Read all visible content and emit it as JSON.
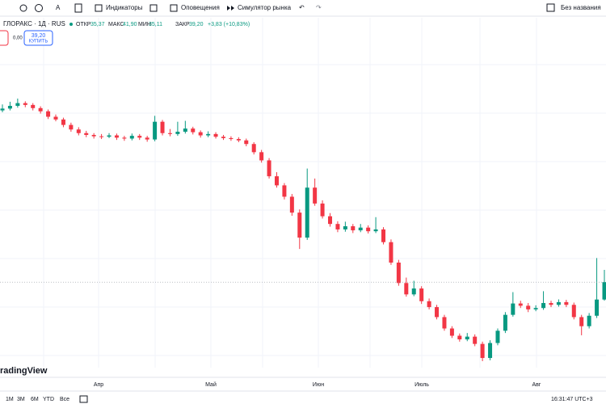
{
  "toolbar": {
    "indicators": "Индикаторы",
    "alerts": "Оповещения",
    "simulator": "Симулятор рынка",
    "layout_name": "Без названия"
  },
  "legend": {
    "symbol": "ГЛОРАКС · 1Д · RUS",
    "open_label": "ОТКР",
    "open": "35,37",
    "high_label": "МАКС",
    "high": "41,90",
    "low_label": "МИН",
    "low": "35,11",
    "close_label": "ЗАКР",
    "close": "39,20",
    "change": "+3,83 (+10,83%)"
  },
  "trade": {
    "spread": "0,00",
    "buy_price": "39,20",
    "buy_label": "КУПИТЬ"
  },
  "chart_data": {
    "type": "candlestick",
    "up_color": "#089981",
    "down_color": "#f23645",
    "x_labels": [
      "Апр",
      "Май",
      "Июн",
      "Июль",
      "Авг"
    ],
    "watermark": "radingView",
    "candles": [
      [
        77.0,
        78.3,
        76.6,
        77.4
      ],
      [
        77.4,
        78.9,
        77.0,
        78.0
      ],
      [
        78.0,
        79.6,
        77.6,
        78.6
      ],
      [
        78.6,
        79.0,
        77.7,
        78.2
      ],
      [
        78.2,
        78.6,
        77.0,
        77.5
      ],
      [
        77.5,
        77.9,
        76.3,
        76.8
      ],
      [
        76.8,
        77.2,
        75.1,
        75.6
      ],
      [
        75.6,
        76.1,
        74.6,
        75.0
      ],
      [
        75.0,
        75.4,
        73.3,
        73.8
      ],
      [
        73.8,
        74.3,
        72.3,
        72.8
      ],
      [
        72.8,
        73.3,
        71.5,
        72.0
      ],
      [
        72.0,
        72.5,
        71.1,
        71.6
      ],
      [
        71.6,
        72.0,
        70.8,
        71.3
      ],
      [
        71.3,
        71.8,
        70.7,
        71.2
      ],
      [
        71.2,
        72.0,
        70.9,
        71.5
      ],
      [
        71.5,
        71.9,
        70.5,
        71.0
      ],
      [
        71.0,
        71.4,
        70.3,
        70.8
      ],
      [
        70.8,
        71.9,
        70.4,
        71.4
      ],
      [
        71.4,
        71.8,
        70.5,
        71.0
      ],
      [
        71.0,
        71.4,
        70.1,
        70.6
      ],
      [
        70.6,
        75.8,
        70.2,
        74.5
      ],
      [
        74.5,
        74.9,
        71.5,
        72.0
      ],
      [
        72.0,
        72.9,
        71.3,
        71.8
      ],
      [
        71.8,
        74.5,
        71.4,
        72.3
      ],
      [
        72.3,
        74.7,
        71.9,
        73.0
      ],
      [
        73.0,
        73.4,
        71.7,
        72.2
      ],
      [
        72.2,
        72.6,
        71.0,
        71.5
      ],
      [
        71.5,
        72.4,
        71.1,
        71.8
      ],
      [
        71.8,
        72.2,
        70.8,
        71.2
      ],
      [
        71.2,
        71.6,
        70.5,
        70.9
      ],
      [
        70.9,
        71.3,
        70.3,
        70.7
      ],
      [
        70.7,
        71.1,
        70.0,
        70.4
      ],
      [
        70.4,
        70.8,
        69.1,
        69.6
      ],
      [
        69.6,
        70.0,
        67.3,
        67.8
      ],
      [
        67.8,
        68.3,
        65.5,
        66.0
      ],
      [
        66.0,
        66.5,
        62.0,
        62.5
      ],
      [
        62.5,
        63.4,
        60.0,
        60.5
      ],
      [
        60.5,
        61.0,
        57.4,
        58.0
      ],
      [
        58.0,
        58.6,
        53.8,
        54.5
      ],
      [
        54.5,
        55.2,
        46.5,
        49.0
      ],
      [
        49.0,
        64.2,
        48.5,
        60.0
      ],
      [
        60.0,
        62.0,
        56.0,
        56.5
      ],
      [
        56.5,
        57.2,
        53.2,
        53.7
      ],
      [
        53.7,
        54.4,
        51.4,
        52.0
      ],
      [
        52.0,
        52.6,
        50.2,
        50.8
      ],
      [
        50.8,
        52.5,
        50.3,
        51.5
      ],
      [
        51.5,
        52.0,
        50.0,
        50.6
      ],
      [
        50.6,
        52.0,
        50.2,
        51.2
      ],
      [
        51.2,
        51.7,
        49.9,
        50.4
      ],
      [
        50.4,
        53.5,
        50.0,
        50.8
      ],
      [
        50.8,
        51.3,
        47.5,
        48.0
      ],
      [
        48.0,
        48.6,
        43.0,
        43.5
      ],
      [
        43.5,
        44.1,
        38.4,
        39.0
      ],
      [
        39.0,
        40.2,
        36.0,
        36.5
      ],
      [
        36.5,
        39.5,
        36.1,
        37.8
      ],
      [
        37.8,
        38.3,
        34.4,
        35.0
      ],
      [
        35.0,
        35.6,
        33.2,
        33.7
      ],
      [
        33.7,
        34.2,
        31.0,
        31.5
      ],
      [
        31.5,
        32.0,
        28.5,
        29.0
      ],
      [
        29.0,
        29.5,
        26.9,
        27.4
      ],
      [
        27.4,
        27.9,
        26.1,
        26.6
      ],
      [
        26.6,
        28.0,
        26.2,
        27.2
      ],
      [
        27.2,
        27.7,
        25.1,
        25.6
      ],
      [
        25.6,
        26.1,
        21.8,
        22.5
      ],
      [
        22.5,
        26.4,
        22.0,
        25.8
      ],
      [
        25.8,
        29.0,
        25.3,
        28.5
      ],
      [
        28.5,
        32.6,
        28.0,
        32.0
      ],
      [
        32.0,
        37.0,
        31.6,
        34.5
      ],
      [
        34.5,
        35.1,
        33.5,
        34.0
      ],
      [
        34.0,
        34.6,
        32.6,
        33.2
      ],
      [
        33.2,
        34.1,
        32.8,
        33.5
      ],
      [
        33.5,
        37.2,
        33.1,
        34.6
      ],
      [
        34.6,
        35.1,
        33.7,
        34.2
      ],
      [
        34.2,
        35.4,
        33.8,
        34.8
      ],
      [
        34.8,
        35.3,
        33.7,
        34.2
      ],
      [
        34.2,
        34.7,
        31.0,
        31.5
      ],
      [
        31.5,
        32.0,
        27.5,
        29.5
      ],
      [
        29.5,
        32.4,
        29.0,
        31.8
      ],
      [
        31.8,
        44.5,
        31.3,
        35.37
      ],
      [
        35.37,
        41.9,
        35.11,
        39.2
      ]
    ]
  },
  "bottom_bar": {
    "ranges": [
      "1М",
      "3М",
      "6М",
      "YTD",
      "Все"
    ],
    "clock": "16:31:47 UTC+3"
  }
}
